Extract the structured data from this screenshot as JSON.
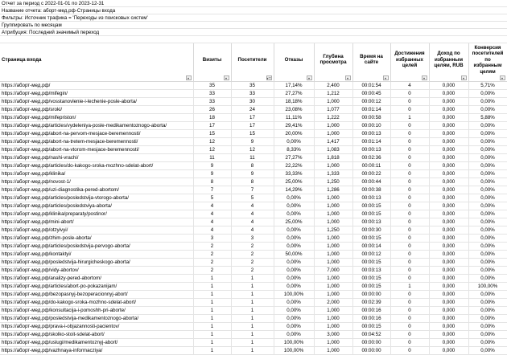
{
  "report": {
    "lines": [
      "Отчет за период с 2022-01-01 по 2023-12-31",
      "Название отчета: аборт-мед.рф-Страницы входа",
      "Фильтры: Источник трафика = 'Переходы из поисковых систем'",
      "Группировать по месяцам",
      "Атрибуция: Последний значимый переход"
    ]
  },
  "table": {
    "columns": [
      "Страница входа",
      "Визиты",
      "Посетители",
      "Отказы",
      "Глубина просмотра",
      "Время на сайте",
      "Достижения избранных целей",
      "Доход по избранным целям, RUB",
      "Конверсия посетителей по избранным целям"
    ],
    "filter_icons": [
      "dropdown-icon",
      "dropdown-icon",
      "filter-active-icon",
      "dropdown-icon",
      "dropdown-icon",
      "dropdown-icon",
      "dropdown-icon",
      "dropdown-icon",
      "dropdown-icon"
    ],
    "rows": [
      [
        "https://аборт-мед.рф/",
        "35",
        "35",
        "17,14%",
        "2,400",
        "00:01:54",
        "4",
        "0,000",
        "5,71%"
      ],
      [
        "https://аборт-мед.рф/mifegin/",
        "33",
        "33",
        "27,27%",
        "1,212",
        "00:00:45",
        "0",
        "0,000",
        "0,00%"
      ],
      [
        "https://аборт-мед.рф/vosstanovlenie-i-lechenie-posle-aborta/",
        "33",
        "30",
        "18,18%",
        "1,000",
        "00:00:12",
        "0",
        "0,000",
        "0,00%"
      ],
      [
        "https://аборт-мед.рф/sroki/",
        "26",
        "24",
        "23,08%",
        "1,077",
        "00:01:14",
        "0",
        "0,000",
        "0,00%"
      ],
      [
        "https://аборт-мед.рф/mifepriston/",
        "18",
        "17",
        "11,11%",
        "1,222",
        "00:00:58",
        "1",
        "0,000",
        "5,88%"
      ],
      [
        "https://аборт-мед.рф/articles/vydeleniya-posle-medikamentoznogo-aborta/",
        "17",
        "17",
        "29,41%",
        "1,000",
        "00:00:10",
        "0",
        "0,000",
        "0,00%"
      ],
      [
        "https://аборт-мед.рф/abort-na-pervom-mesjace-beremennosti/",
        "15",
        "15",
        "20,00%",
        "1,000",
        "00:00:13",
        "0",
        "0,000",
        "0,00%"
      ],
      [
        "https://аборт-мед.рф/abort-na-tretem-mesjace-beremennosti/",
        "12",
        "9",
        "0,00%",
        "1,417",
        "00:01:14",
        "0",
        "0,000",
        "0,00%"
      ],
      [
        "https://аборт-мед.рф/abort-na-vtorom-mesjace-beremennosti/",
        "12",
        "12",
        "8,33%",
        "1,083",
        "00:00:13",
        "0",
        "0,000",
        "0,00%"
      ],
      [
        "https://аборт-мед.рф/nashi-vrachi/",
        "11",
        "11",
        "27,27%",
        "1,818",
        "00:02:36",
        "0",
        "0,000",
        "0,00%"
      ],
      [
        "https://аборт-мед.рф/articles/do-kakogo-sroka-mozhno-sdelat-abort/",
        "9",
        "8",
        "22,22%",
        "1,000",
        "00:00:11",
        "0",
        "0,000",
        "0,00%"
      ],
      [
        "https://аборт-мед.рф/klinika/",
        "9",
        "9",
        "33,33%",
        "1,333",
        "00:00:22",
        "0",
        "0,000",
        "0,00%"
      ],
      [
        "https://аборт-мед.рф/novost-1/",
        "8",
        "8",
        "25,00%",
        "1,250",
        "00:00:44",
        "0",
        "0,000",
        "0,00%"
      ],
      [
        "https://аборт-мед.рф/uzi-diagnostika-pered-abortom/",
        "7",
        "7",
        "14,29%",
        "1,286",
        "00:00:38",
        "0",
        "0,000",
        "0,00%"
      ],
      [
        "https://аборт-мед.рф/articles/posledstvija-vtorogo-aborta/",
        "5",
        "5",
        "0,00%",
        "1,000",
        "00:00:13",
        "0",
        "0,000",
        "0,00%"
      ],
      [
        "https://аборт-мед.рф/articles/posledstviya-aborta/",
        "4",
        "4",
        "0,00%",
        "1,000",
        "00:00:15",
        "0",
        "0,000",
        "0,00%"
      ],
      [
        "https://аборт-мед.рф/klinika/preparaty/postinor/",
        "4",
        "4",
        "0,00%",
        "1,000",
        "00:00:15",
        "0",
        "0,000",
        "0,00%"
      ],
      [
        "https://аборт-мед.рф/mini-abort/",
        "4",
        "4",
        "25,00%",
        "1,000",
        "00:00:13",
        "0",
        "0,000",
        "0,00%"
      ],
      [
        "https://аборт-мед.рф/otzyivyi/",
        "4",
        "4",
        "0,00%",
        "1,250",
        "00:00:30",
        "0",
        "0,000",
        "0,00%"
      ],
      [
        "https://аборт-мед.рф/zhim-posle-aborta/",
        "3",
        "3",
        "0,00%",
        "1,000",
        "00:00:15",
        "0",
        "0,000",
        "0,00%"
      ],
      [
        "https://аборт-мед.рф/articles/posledstvija-pervogo-aborta/",
        "2",
        "2",
        "0,00%",
        "1,000",
        "00:00:14",
        "0",
        "0,000",
        "0,00%"
      ],
      [
        "https://аборт-мед.рф/kontaktyi/",
        "2",
        "2",
        "50,00%",
        "1,000",
        "00:00:12",
        "0",
        "0,000",
        "0,00%"
      ],
      [
        "https://аборт-мед.рф/posledstvija-hirurgicheskogo-aborta/",
        "2",
        "2",
        "0,00%",
        "1,000",
        "00:00:15",
        "0",
        "0,000",
        "0,00%"
      ],
      [
        "https://аборт-мед.рф/vidy-abortov/",
        "2",
        "2",
        "0,00%",
        "7,000",
        "00:03:13",
        "0",
        "0,000",
        "0,00%"
      ],
      [
        "https://аборт-мед.рф/analizy-pered-abortom/",
        "1",
        "1",
        "0,00%",
        "1,000",
        "00:00:15",
        "0",
        "0,000",
        "0,00%"
      ],
      [
        "https://аборт-мед.рф/articles/abort-po-pokazanijam/",
        "1",
        "1",
        "0,00%",
        "1,000",
        "00:00:15",
        "1",
        "0,000",
        "100,00%"
      ],
      [
        "https://аборт-мед.рф/bezopasnyj-bezoperacionnyj-abort/",
        "1",
        "1",
        "100,00%",
        "1,000",
        "00:00:00",
        "0",
        "0,000",
        "0,00%"
      ],
      [
        "https://аборт-мед.рф/do-kakogo-sroka-mozhno-sdelat-abort/",
        "1",
        "1",
        "0,00%",
        "2,000",
        "00:02:39",
        "0",
        "0,000",
        "0,00%"
      ],
      [
        "https://аборт-мед.рф/konsultacija-i-pomoshh-pri-aborte/",
        "1",
        "1",
        "0,00%",
        "1,000",
        "00:00:16",
        "0",
        "0,000",
        "0,00%"
      ],
      [
        "https://аборт-мед.рф/posledstvija-medikamentoznogo-aborta/",
        "1",
        "1",
        "0,00%",
        "1,000",
        "00:00:16",
        "0",
        "0,000",
        "0,00%"
      ],
      [
        "https://аборт-мед.рф/prava-i-objazannosti-pacientov/",
        "1",
        "1",
        "0,00%",
        "1,000",
        "00:00:15",
        "0",
        "0,000",
        "0,00%"
      ],
      [
        "https://аборт-мед.рф/skolko-stoit-sdelat-abort/",
        "1",
        "1",
        "0,00%",
        "3,000",
        "00:04:52",
        "0",
        "0,000",
        "0,00%"
      ],
      [
        "https://аборт-мед.рф/uslugi/medikamentoznyj-abort/",
        "1",
        "1",
        "100,00%",
        "1,000",
        "00:00:00",
        "0",
        "0,000",
        "0,00%"
      ],
      [
        "https://аборт-мед.рф/vazhnaya-informacziya/",
        "1",
        "1",
        "100,00%",
        "1,000",
        "00:00:00",
        "0",
        "0,000",
        "0,00%"
      ]
    ]
  }
}
